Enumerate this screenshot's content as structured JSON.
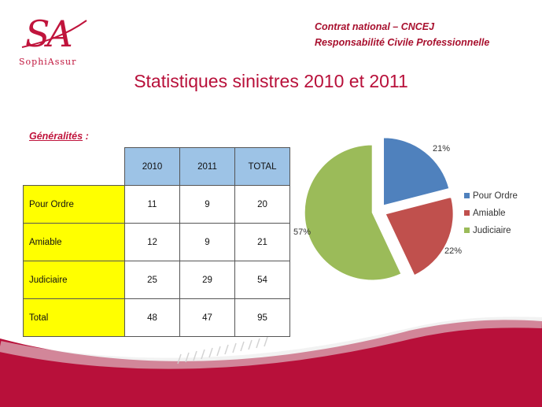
{
  "header": {
    "line1": "Contrat  national – CNCEJ",
    "line2": "Responsabilité  Civile Professionnelle"
  },
  "logo": {
    "mark": "SA",
    "brand": "SophiAssur"
  },
  "title": "Statistiques  sinistres 2010 et 2011",
  "section": {
    "label": "Généralités",
    "suffix": "  :"
  },
  "table": {
    "headers": [
      "2010",
      "2011",
      "TOTAL"
    ],
    "rows": [
      {
        "label": "Pour Ordre",
        "values": [
          "11",
          "9",
          "20"
        ]
      },
      {
        "label": "Amiable",
        "values": [
          "12",
          "9",
          "21"
        ]
      },
      {
        "label": "Judiciaire",
        "values": [
          "25",
          "29",
          "54"
        ]
      },
      {
        "label": "Total",
        "values": [
          "48",
          "47",
          "95"
        ]
      }
    ]
  },
  "colors": {
    "brand": "#c0143c",
    "header_cell": "#9dc3e6",
    "label_cell": "#ffff00"
  },
  "chart_data": {
    "type": "pie",
    "exploded": true,
    "labels": [
      "Pour Ordre",
      "Amiable",
      "Judiciaire"
    ],
    "values": [
      21,
      22,
      57
    ],
    "data_labels": [
      "21%",
      "22%",
      "57%"
    ],
    "colors": [
      "#4f81bd",
      "#c0504d",
      "#9bbb59"
    ],
    "legend_position": "right"
  }
}
